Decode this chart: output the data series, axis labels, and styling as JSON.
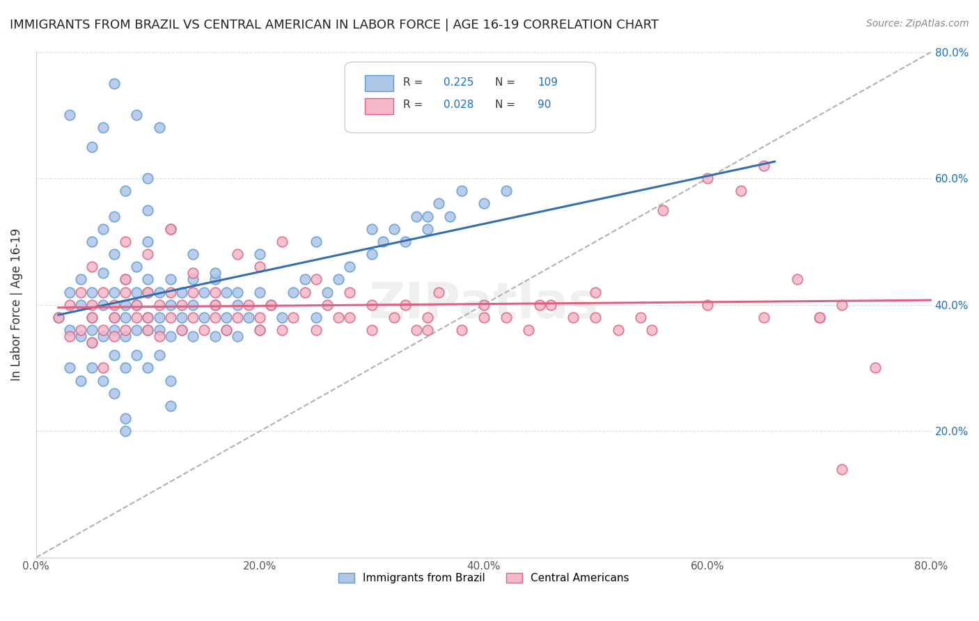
{
  "title": "IMMIGRANTS FROM BRAZIL VS CENTRAL AMERICAN IN LABOR FORCE | AGE 16-19 CORRELATION CHART",
  "source": "Source: ZipAtlas.com",
  "ylabel": "In Labor Force | Age 16-19",
  "brazil_R": 0.225,
  "brazil_N": 109,
  "central_R": 0.028,
  "central_N": 90,
  "brazil_color": "#aec6e8",
  "brazil_edge": "#5b9bd5",
  "central_color": "#f4b8c8",
  "central_edge": "#e06080",
  "brazil_line_color": "#3070b0",
  "central_line_color": "#e06080",
  "ref_line_color": "#b0b0b0",
  "xlim": [
    0.0,
    0.8
  ],
  "ylim": [
    0.0,
    0.8
  ],
  "xticks": [
    0.0,
    0.2,
    0.4,
    0.6,
    0.8
  ],
  "yticks": [
    0.2,
    0.4,
    0.6,
    0.8
  ],
  "xtick_labels": [
    "0.0%",
    "20.0%",
    "40.0%",
    "60.0%",
    "80.0%"
  ],
  "right_ytick_labels": [
    "20.0%",
    "40.0%",
    "60.0%",
    "80.0%"
  ],
  "legend_brazil_label": "Immigrants from Brazil",
  "legend_central_label": "Central Americans",
  "brazil_x": [
    0.02,
    0.03,
    0.03,
    0.03,
    0.04,
    0.04,
    0.04,
    0.04,
    0.05,
    0.05,
    0.05,
    0.05,
    0.05,
    0.05,
    0.06,
    0.06,
    0.06,
    0.06,
    0.06,
    0.07,
    0.07,
    0.07,
    0.07,
    0.07,
    0.07,
    0.07,
    0.08,
    0.08,
    0.08,
    0.08,
    0.08,
    0.08,
    0.09,
    0.09,
    0.09,
    0.09,
    0.09,
    0.1,
    0.1,
    0.1,
    0.1,
    0.1,
    0.1,
    0.11,
    0.11,
    0.11,
    0.11,
    0.12,
    0.12,
    0.12,
    0.12,
    0.13,
    0.13,
    0.13,
    0.14,
    0.14,
    0.14,
    0.15,
    0.15,
    0.16,
    0.16,
    0.16,
    0.17,
    0.17,
    0.17,
    0.18,
    0.18,
    0.19,
    0.2,
    0.2,
    0.21,
    0.22,
    0.23,
    0.24,
    0.25,
    0.26,
    0.27,
    0.28,
    0.3,
    0.31,
    0.32,
    0.33,
    0.34,
    0.35,
    0.36,
    0.37,
    0.38,
    0.03,
    0.05,
    0.06,
    0.08,
    0.1,
    0.1,
    0.12,
    0.14,
    0.16,
    0.18,
    0.2,
    0.25,
    0.3,
    0.35,
    0.4,
    0.42,
    0.44,
    0.07,
    0.09,
    0.11,
    0.12,
    0.08
  ],
  "brazil_y": [
    0.38,
    0.36,
    0.42,
    0.3,
    0.35,
    0.4,
    0.28,
    0.44,
    0.38,
    0.34,
    0.5,
    0.42,
    0.36,
    0.3,
    0.4,
    0.35,
    0.45,
    0.52,
    0.28,
    0.38,
    0.42,
    0.36,
    0.32,
    0.48,
    0.54,
    0.26,
    0.4,
    0.35,
    0.38,
    0.44,
    0.3,
    0.22,
    0.42,
    0.36,
    0.4,
    0.32,
    0.46,
    0.38,
    0.42,
    0.36,
    0.44,
    0.3,
    0.5,
    0.38,
    0.42,
    0.36,
    0.32,
    0.4,
    0.35,
    0.44,
    0.28,
    0.38,
    0.42,
    0.36,
    0.4,
    0.35,
    0.44,
    0.38,
    0.42,
    0.4,
    0.35,
    0.44,
    0.38,
    0.42,
    0.36,
    0.4,
    0.35,
    0.38,
    0.42,
    0.36,
    0.4,
    0.38,
    0.42,
    0.44,
    0.38,
    0.42,
    0.44,
    0.46,
    0.48,
    0.5,
    0.52,
    0.5,
    0.54,
    0.52,
    0.56,
    0.54,
    0.58,
    0.7,
    0.65,
    0.68,
    0.58,
    0.55,
    0.6,
    0.52,
    0.48,
    0.45,
    0.42,
    0.48,
    0.5,
    0.52,
    0.54,
    0.56,
    0.58,
    0.72,
    0.75,
    0.7,
    0.68,
    0.24,
    0.2
  ],
  "central_x": [
    0.02,
    0.03,
    0.03,
    0.04,
    0.04,
    0.05,
    0.05,
    0.05,
    0.06,
    0.06,
    0.06,
    0.07,
    0.07,
    0.07,
    0.08,
    0.08,
    0.08,
    0.09,
    0.09,
    0.1,
    0.1,
    0.1,
    0.11,
    0.11,
    0.12,
    0.12,
    0.13,
    0.13,
    0.14,
    0.14,
    0.15,
    0.16,
    0.16,
    0.17,
    0.18,
    0.19,
    0.2,
    0.2,
    0.21,
    0.22,
    0.23,
    0.24,
    0.25,
    0.26,
    0.27,
    0.28,
    0.3,
    0.32,
    0.33,
    0.34,
    0.35,
    0.36,
    0.38,
    0.4,
    0.42,
    0.44,
    0.46,
    0.48,
    0.5,
    0.52,
    0.54,
    0.56,
    0.6,
    0.63,
    0.65,
    0.68,
    0.7,
    0.72,
    0.75,
    0.05,
    0.08,
    0.1,
    0.12,
    0.14,
    0.16,
    0.18,
    0.2,
    0.22,
    0.25,
    0.28,
    0.3,
    0.35,
    0.4,
    0.45,
    0.5,
    0.55,
    0.6,
    0.65,
    0.7,
    0.72
  ],
  "central_y": [
    0.38,
    0.4,
    0.35,
    0.42,
    0.36,
    0.38,
    0.4,
    0.34,
    0.42,
    0.36,
    0.3,
    0.38,
    0.4,
    0.35,
    0.42,
    0.36,
    0.44,
    0.38,
    0.4,
    0.42,
    0.36,
    0.38,
    0.4,
    0.35,
    0.38,
    0.42,
    0.36,
    0.4,
    0.38,
    0.42,
    0.36,
    0.38,
    0.4,
    0.36,
    0.38,
    0.4,
    0.36,
    0.38,
    0.4,
    0.36,
    0.38,
    0.42,
    0.36,
    0.4,
    0.38,
    0.42,
    0.36,
    0.38,
    0.4,
    0.36,
    0.38,
    0.42,
    0.36,
    0.4,
    0.38,
    0.36,
    0.4,
    0.38,
    0.42,
    0.36,
    0.38,
    0.55,
    0.6,
    0.58,
    0.62,
    0.44,
    0.38,
    0.4,
    0.3,
    0.46,
    0.5,
    0.48,
    0.52,
    0.45,
    0.42,
    0.48,
    0.46,
    0.5,
    0.44,
    0.38,
    0.4,
    0.36,
    0.38,
    0.4,
    0.38,
    0.36,
    0.4,
    0.38,
    0.38,
    0.14
  ]
}
